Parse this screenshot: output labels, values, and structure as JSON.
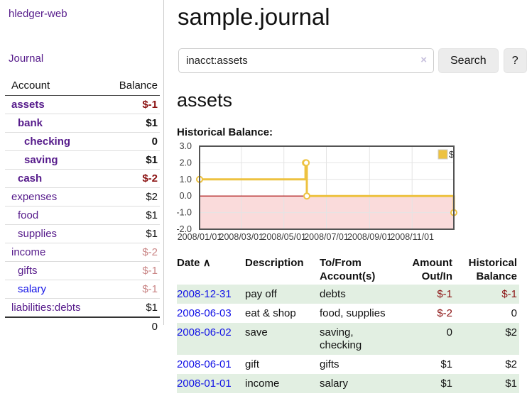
{
  "colors": {
    "accent_purple": "#561b8b",
    "link_blue": "#1212e6",
    "negative": "#8b1212",
    "negative_dim": "#c98585",
    "row_stripe_green": "#e2efe2",
    "chart_line": "#edc240",
    "chart_negative_region": "#fadbdb",
    "chart_zero_line": "#a40000"
  },
  "sidebar": {
    "brand": "hledger-web",
    "journal_link": "Journal",
    "accounts": {
      "header": {
        "account": "Account",
        "balance": "Balance"
      },
      "rows": [
        {
          "name": "assets",
          "balance": "$-1",
          "depth": 0,
          "bold": true,
          "balance_color": "negative",
          "name_color": "purple"
        },
        {
          "name": "bank",
          "balance": "$1",
          "depth": 1,
          "bold": true,
          "balance_color": "normal",
          "name_color": "purple"
        },
        {
          "name": "checking",
          "balance": "0",
          "depth": 2,
          "bold": true,
          "balance_color": "normal",
          "name_color": "purple"
        },
        {
          "name": "saving",
          "balance": "$1",
          "depth": 2,
          "bold": true,
          "balance_color": "normal",
          "name_color": "purple"
        },
        {
          "name": "cash",
          "balance": "$-2",
          "depth": 1,
          "bold": true,
          "balance_color": "negative",
          "name_color": "purple"
        },
        {
          "name": "expenses",
          "balance": "$2",
          "depth": 0,
          "bold": false,
          "balance_color": "normal",
          "name_color": "purple"
        },
        {
          "name": "food",
          "balance": "$1",
          "depth": 1,
          "bold": false,
          "balance_color": "normal",
          "name_color": "purple"
        },
        {
          "name": "supplies",
          "balance": "$1",
          "depth": 1,
          "bold": false,
          "balance_color": "normal",
          "name_color": "purple"
        },
        {
          "name": "income",
          "balance": "$-2",
          "depth": 0,
          "bold": false,
          "balance_color": "negative-dim",
          "name_color": "purple"
        },
        {
          "name": "gifts",
          "balance": "$-1",
          "depth": 1,
          "bold": false,
          "balance_color": "negative-dim",
          "name_color": "purple"
        },
        {
          "name": "salary",
          "balance": "$-1",
          "depth": 1,
          "bold": false,
          "balance_color": "negative-dim",
          "name_color": "blue"
        },
        {
          "name": "liabilities:debts",
          "balance": "$1",
          "depth": 0,
          "bold": false,
          "balance_color": "normal",
          "name_color": "purple"
        }
      ],
      "total": "0"
    }
  },
  "header": {
    "title": "sample.journal"
  },
  "search": {
    "query": "inacct:assets",
    "clear_icon": "×",
    "search_button": "Search",
    "help_button": "?"
  },
  "account_view": {
    "heading": "assets",
    "chart_label": "Historical Balance:"
  },
  "chart_data": {
    "type": "line",
    "step": true,
    "title": "Historical Balance:",
    "legend": "$",
    "legend_position": "top-right",
    "xlim": [
      "2008-01-01",
      "2008-12-31"
    ],
    "ylim": [
      -2,
      3
    ],
    "y_ticks": [
      3.0,
      2.0,
      1.0,
      0.0,
      -1.0,
      -2.0
    ],
    "x_ticks": [
      "2008/01/01",
      "2008/03/01",
      "2008/05/01",
      "2008/07/01",
      "2008/09/01",
      "2008/11/01"
    ],
    "grid": true,
    "series": [
      {
        "name": "$",
        "color": "#edc240",
        "points": [
          {
            "date": "2008-01-01",
            "value": 1
          },
          {
            "date": "2008-06-01",
            "value": 2
          },
          {
            "date": "2008-06-02",
            "value": 2
          },
          {
            "date": "2008-06-03",
            "value": 0
          },
          {
            "date": "2008-12-31",
            "value": -1
          }
        ]
      }
    ],
    "negative_region_color": "#fadbdb",
    "zero_line_color": "#a40000"
  },
  "register": {
    "headers": {
      "date": "Date",
      "sort_asc_icon": "∧",
      "description": "Description",
      "accounts": "To/From Account(s)",
      "amount": "Amount Out/In",
      "balance": "Historical Balance"
    },
    "rows": [
      {
        "date": "2008-12-31",
        "description": "pay off",
        "accounts": "debts",
        "amount": "$-1",
        "balance": "$-1"
      },
      {
        "date": "2008-06-03",
        "description": "eat & shop",
        "accounts": "food, supplies",
        "amount": "$-2",
        "balance": "0"
      },
      {
        "date": "2008-06-02",
        "description": "save",
        "accounts": "saving, checking",
        "amount": "0",
        "balance": "$2"
      },
      {
        "date": "2008-06-01",
        "description": "gift",
        "accounts": "gifts",
        "amount": "$1",
        "balance": "$2"
      },
      {
        "date": "2008-01-01",
        "description": "income",
        "accounts": "salary",
        "amount": "$1",
        "balance": "$1"
      }
    ]
  }
}
